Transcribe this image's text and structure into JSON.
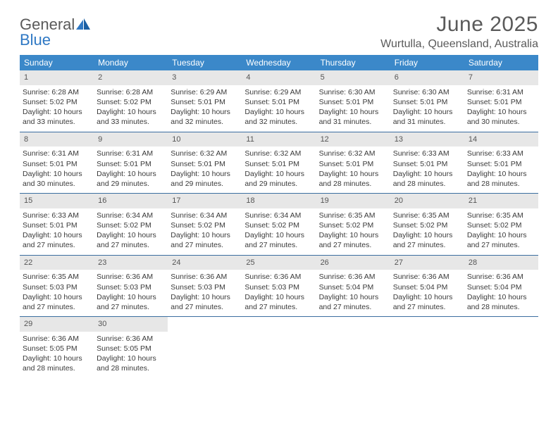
{
  "logo": {
    "word1": "General",
    "word2": "Blue"
  },
  "title": "June 2025",
  "location": "Wurtulla, Queensland, Australia",
  "colors": {
    "header_bg": "#3b88c9",
    "header_text": "#ffffff",
    "daynum_bg": "#e7e7e7",
    "week_border": "#3b6ea0",
    "text": "#3a3a3a",
    "logo_gray": "#5a5a5a",
    "logo_blue": "#2f78c4"
  },
  "typography": {
    "title_fontsize": 30,
    "location_fontsize": 16,
    "dow_fontsize": 12,
    "cell_fontsize": 10.5
  },
  "days_of_week": [
    "Sunday",
    "Monday",
    "Tuesday",
    "Wednesday",
    "Thursday",
    "Friday",
    "Saturday"
  ],
  "weeks": [
    [
      {
        "n": "1",
        "sr": "Sunrise: 6:28 AM",
        "ss": "Sunset: 5:02 PM",
        "d1": "Daylight: 10 hours",
        "d2": "and 33 minutes."
      },
      {
        "n": "2",
        "sr": "Sunrise: 6:28 AM",
        "ss": "Sunset: 5:02 PM",
        "d1": "Daylight: 10 hours",
        "d2": "and 33 minutes."
      },
      {
        "n": "3",
        "sr": "Sunrise: 6:29 AM",
        "ss": "Sunset: 5:01 PM",
        "d1": "Daylight: 10 hours",
        "d2": "and 32 minutes."
      },
      {
        "n": "4",
        "sr": "Sunrise: 6:29 AM",
        "ss": "Sunset: 5:01 PM",
        "d1": "Daylight: 10 hours",
        "d2": "and 32 minutes."
      },
      {
        "n": "5",
        "sr": "Sunrise: 6:30 AM",
        "ss": "Sunset: 5:01 PM",
        "d1": "Daylight: 10 hours",
        "d2": "and 31 minutes."
      },
      {
        "n": "6",
        "sr": "Sunrise: 6:30 AM",
        "ss": "Sunset: 5:01 PM",
        "d1": "Daylight: 10 hours",
        "d2": "and 31 minutes."
      },
      {
        "n": "7",
        "sr": "Sunrise: 6:31 AM",
        "ss": "Sunset: 5:01 PM",
        "d1": "Daylight: 10 hours",
        "d2": "and 30 minutes."
      }
    ],
    [
      {
        "n": "8",
        "sr": "Sunrise: 6:31 AM",
        "ss": "Sunset: 5:01 PM",
        "d1": "Daylight: 10 hours",
        "d2": "and 30 minutes."
      },
      {
        "n": "9",
        "sr": "Sunrise: 6:31 AM",
        "ss": "Sunset: 5:01 PM",
        "d1": "Daylight: 10 hours",
        "d2": "and 29 minutes."
      },
      {
        "n": "10",
        "sr": "Sunrise: 6:32 AM",
        "ss": "Sunset: 5:01 PM",
        "d1": "Daylight: 10 hours",
        "d2": "and 29 minutes."
      },
      {
        "n": "11",
        "sr": "Sunrise: 6:32 AM",
        "ss": "Sunset: 5:01 PM",
        "d1": "Daylight: 10 hours",
        "d2": "and 29 minutes."
      },
      {
        "n": "12",
        "sr": "Sunrise: 6:32 AM",
        "ss": "Sunset: 5:01 PM",
        "d1": "Daylight: 10 hours",
        "d2": "and 28 minutes."
      },
      {
        "n": "13",
        "sr": "Sunrise: 6:33 AM",
        "ss": "Sunset: 5:01 PM",
        "d1": "Daylight: 10 hours",
        "d2": "and 28 minutes."
      },
      {
        "n": "14",
        "sr": "Sunrise: 6:33 AM",
        "ss": "Sunset: 5:01 PM",
        "d1": "Daylight: 10 hours",
        "d2": "and 28 minutes."
      }
    ],
    [
      {
        "n": "15",
        "sr": "Sunrise: 6:33 AM",
        "ss": "Sunset: 5:01 PM",
        "d1": "Daylight: 10 hours",
        "d2": "and 27 minutes."
      },
      {
        "n": "16",
        "sr": "Sunrise: 6:34 AM",
        "ss": "Sunset: 5:02 PM",
        "d1": "Daylight: 10 hours",
        "d2": "and 27 minutes."
      },
      {
        "n": "17",
        "sr": "Sunrise: 6:34 AM",
        "ss": "Sunset: 5:02 PM",
        "d1": "Daylight: 10 hours",
        "d2": "and 27 minutes."
      },
      {
        "n": "18",
        "sr": "Sunrise: 6:34 AM",
        "ss": "Sunset: 5:02 PM",
        "d1": "Daylight: 10 hours",
        "d2": "and 27 minutes."
      },
      {
        "n": "19",
        "sr": "Sunrise: 6:35 AM",
        "ss": "Sunset: 5:02 PM",
        "d1": "Daylight: 10 hours",
        "d2": "and 27 minutes."
      },
      {
        "n": "20",
        "sr": "Sunrise: 6:35 AM",
        "ss": "Sunset: 5:02 PM",
        "d1": "Daylight: 10 hours",
        "d2": "and 27 minutes."
      },
      {
        "n": "21",
        "sr": "Sunrise: 6:35 AM",
        "ss": "Sunset: 5:02 PM",
        "d1": "Daylight: 10 hours",
        "d2": "and 27 minutes."
      }
    ],
    [
      {
        "n": "22",
        "sr": "Sunrise: 6:35 AM",
        "ss": "Sunset: 5:03 PM",
        "d1": "Daylight: 10 hours",
        "d2": "and 27 minutes."
      },
      {
        "n": "23",
        "sr": "Sunrise: 6:36 AM",
        "ss": "Sunset: 5:03 PM",
        "d1": "Daylight: 10 hours",
        "d2": "and 27 minutes."
      },
      {
        "n": "24",
        "sr": "Sunrise: 6:36 AM",
        "ss": "Sunset: 5:03 PM",
        "d1": "Daylight: 10 hours",
        "d2": "and 27 minutes."
      },
      {
        "n": "25",
        "sr": "Sunrise: 6:36 AM",
        "ss": "Sunset: 5:03 PM",
        "d1": "Daylight: 10 hours",
        "d2": "and 27 minutes."
      },
      {
        "n": "26",
        "sr": "Sunrise: 6:36 AM",
        "ss": "Sunset: 5:04 PM",
        "d1": "Daylight: 10 hours",
        "d2": "and 27 minutes."
      },
      {
        "n": "27",
        "sr": "Sunrise: 6:36 AM",
        "ss": "Sunset: 5:04 PM",
        "d1": "Daylight: 10 hours",
        "d2": "and 27 minutes."
      },
      {
        "n": "28",
        "sr": "Sunrise: 6:36 AM",
        "ss": "Sunset: 5:04 PM",
        "d1": "Daylight: 10 hours",
        "d2": "and 28 minutes."
      }
    ],
    [
      {
        "n": "29",
        "sr": "Sunrise: 6:36 AM",
        "ss": "Sunset: 5:05 PM",
        "d1": "Daylight: 10 hours",
        "d2": "and 28 minutes."
      },
      {
        "n": "30",
        "sr": "Sunrise: 6:36 AM",
        "ss": "Sunset: 5:05 PM",
        "d1": "Daylight: 10 hours",
        "d2": "and 28 minutes."
      },
      {
        "empty": true
      },
      {
        "empty": true
      },
      {
        "empty": true
      },
      {
        "empty": true
      },
      {
        "empty": true
      }
    ]
  ]
}
